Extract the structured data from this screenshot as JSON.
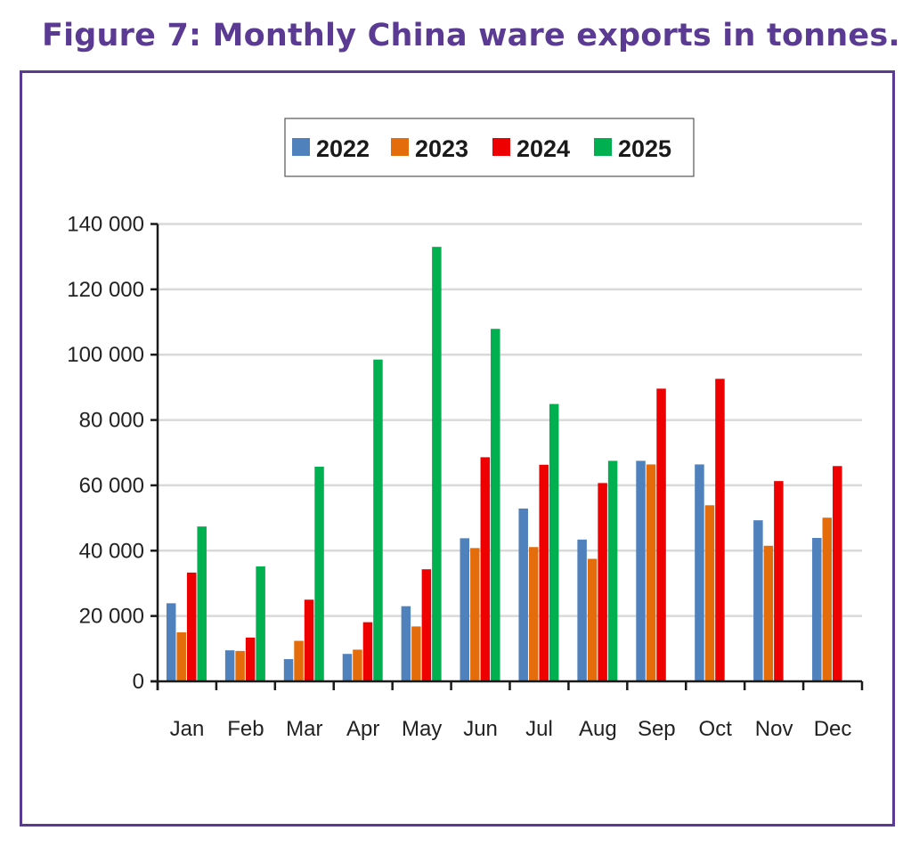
{
  "figure": {
    "title": "Figure 7: Monthly China ware exports in tonnes.",
    "frame_color": "#5b3a93"
  },
  "chart_data": {
    "type": "bar",
    "title": "Figure 7: Monthly China ware exports in tonnes.",
    "xlabel": "",
    "ylabel": "",
    "categories": [
      "Jan",
      "Feb",
      "Mar",
      "Apr",
      "May",
      "Jun",
      "Jul",
      "Aug",
      "Sep",
      "Oct",
      "Nov",
      "Dec"
    ],
    "ylim": [
      0,
      140000
    ],
    "yticks": [
      0,
      20000,
      40000,
      60000,
      80000,
      100000,
      120000,
      140000
    ],
    "ytick_labels": [
      "0",
      "20 000",
      "40 000",
      "60 000",
      "80 000",
      "100 000",
      "120 000",
      "140 000"
    ],
    "grid": true,
    "legend_position": "top-center",
    "series": [
      {
        "name": "2022",
        "color": "#4f81bd",
        "values": [
          23900,
          9500,
          6800,
          8400,
          23000,
          43800,
          52900,
          43400,
          67500,
          66400,
          49300,
          43900
        ]
      },
      {
        "name": "2023",
        "color": "#e46c0a",
        "values": [
          15000,
          9300,
          12400,
          9700,
          16800,
          40800,
          41100,
          37500,
          66400,
          53900,
          41500,
          50100
        ]
      },
      {
        "name": "2024",
        "color": "#ee0000",
        "values": [
          33300,
          13400,
          25000,
          18100,
          34300,
          68600,
          66300,
          60700,
          89600,
          92600,
          61300,
          65900
        ]
      },
      {
        "name": "2025",
        "color": "#00b050",
        "values": [
          47400,
          35200,
          65700,
          98500,
          133000,
          107900,
          84900,
          67500,
          null,
          null,
          null,
          null
        ]
      }
    ]
  }
}
